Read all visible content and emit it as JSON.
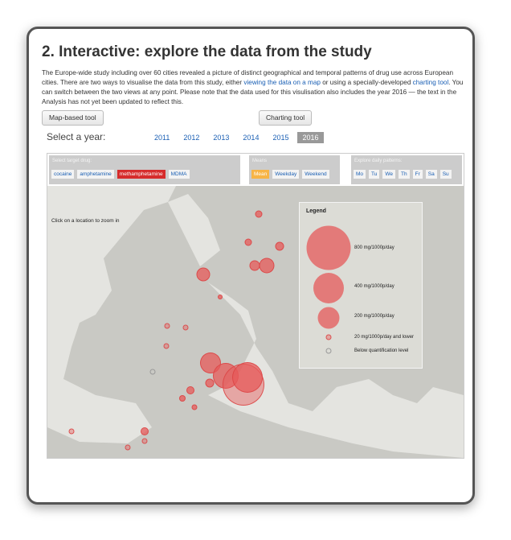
{
  "title": "2. Interactive: explore the data from the study",
  "intro": {
    "p1": "The Europe-wide study including over 60 cities revealed a picture of distinct geographical and temporal patterns of drug use across European cities. There are two ways to visualise the data from this study, either ",
    "link1": "viewing the data on a map",
    "p2": " or using a specially-developed ",
    "link2": "charting tool",
    "p3": ". You can switch between the two views at any point. Please note that the data used for this visulisation also includes the year 2016 — the text in the Analysis has not yet been updated to reflect this."
  },
  "buttons": {
    "map": "Map-based tool",
    "chart": "Charting tool"
  },
  "year": {
    "label": "Select a year:",
    "options": [
      "2011",
      "2012",
      "2013",
      "2014",
      "2015",
      "2016"
    ],
    "selected": "2016"
  },
  "drug": {
    "label": "Select target drug:",
    "options": [
      "cocaine",
      "amphetamine",
      "methamphetamine",
      "MDMA"
    ],
    "selected": "methamphetamine"
  },
  "means": {
    "label": "Means",
    "options": [
      "Mean",
      "Weekday",
      "Weekend"
    ],
    "selected": "Mean"
  },
  "daily": {
    "label": "Explore daily patterns:",
    "options": [
      "Mo",
      "Tu",
      "We",
      "Th",
      "Fr",
      "Sa",
      "Su"
    ]
  },
  "map": {
    "hint": "Click on a location to zoom in"
  },
  "legend": {
    "title": "Legend",
    "items": [
      "800 mg/1000p/day",
      "400 mg/1000p/day",
      "200 mg/1000p/day",
      "20 mg/1000p/day and lower",
      "Below quantification level"
    ]
  },
  "colors": {
    "accent": "#d62c2c",
    "bubble": "#e06a6a",
    "mean": "#f7b446",
    "link": "#1a5fb4"
  }
}
